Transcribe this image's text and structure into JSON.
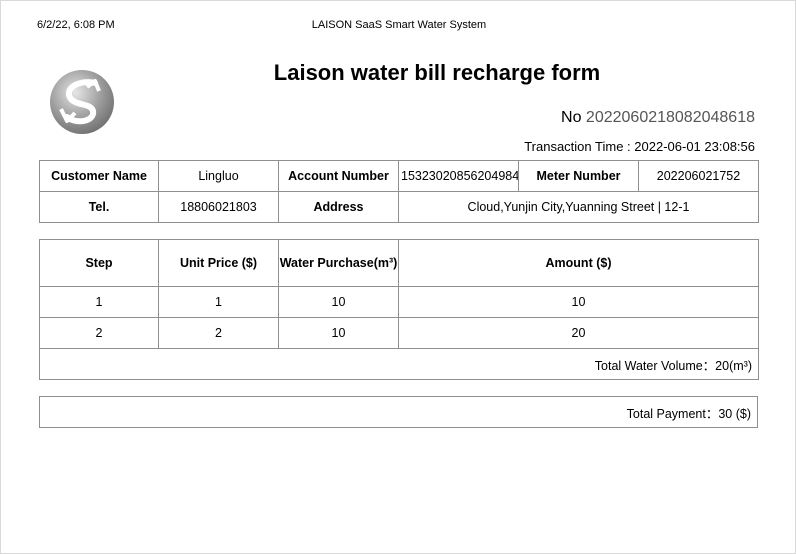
{
  "print_header": {
    "datetime": "6/2/22, 6:08 PM",
    "title": "LAISON SaaS Smart Water System"
  },
  "doc": {
    "title": "Laison water bill recharge form",
    "no_label": "No",
    "no_value": "2022060218082048618",
    "transaction_time_label": "Transaction Time :",
    "transaction_time_value": "2022-06-01 23:08:56"
  },
  "customer": {
    "name_label": "Customer Name",
    "name_value": "Lingluo",
    "account_label": "Account Number",
    "account_value": "15323020856204984",
    "meter_label": "Meter Number",
    "meter_value": "202206021752",
    "tel_label": "Tel.",
    "tel_value": "18806021803",
    "address_label": "Address",
    "address_value": "Cloud,Yunjin City,Yuanning Street | 12-1"
  },
  "steps": {
    "headers": {
      "step": "Step",
      "unit_price": "Unit Price ($)",
      "water_purchase": "Water Purchase(m³)",
      "amount": "Amount ($)"
    },
    "rows": [
      {
        "step": "1",
        "unit_price": "1",
        "water_purchase": "10",
        "amount": "10"
      },
      {
        "step": "2",
        "unit_price": "2",
        "water_purchase": "10",
        "amount": "20"
      }
    ],
    "total_volume": "Total Water Volume：20(m³)"
  },
  "payment": {
    "total": "Total Payment：30 ($)"
  },
  "logo": {
    "icon": "laison-logo-icon",
    "colors": [
      "#8c8c8c",
      "#d9d9d9",
      "#ffffff"
    ]
  }
}
